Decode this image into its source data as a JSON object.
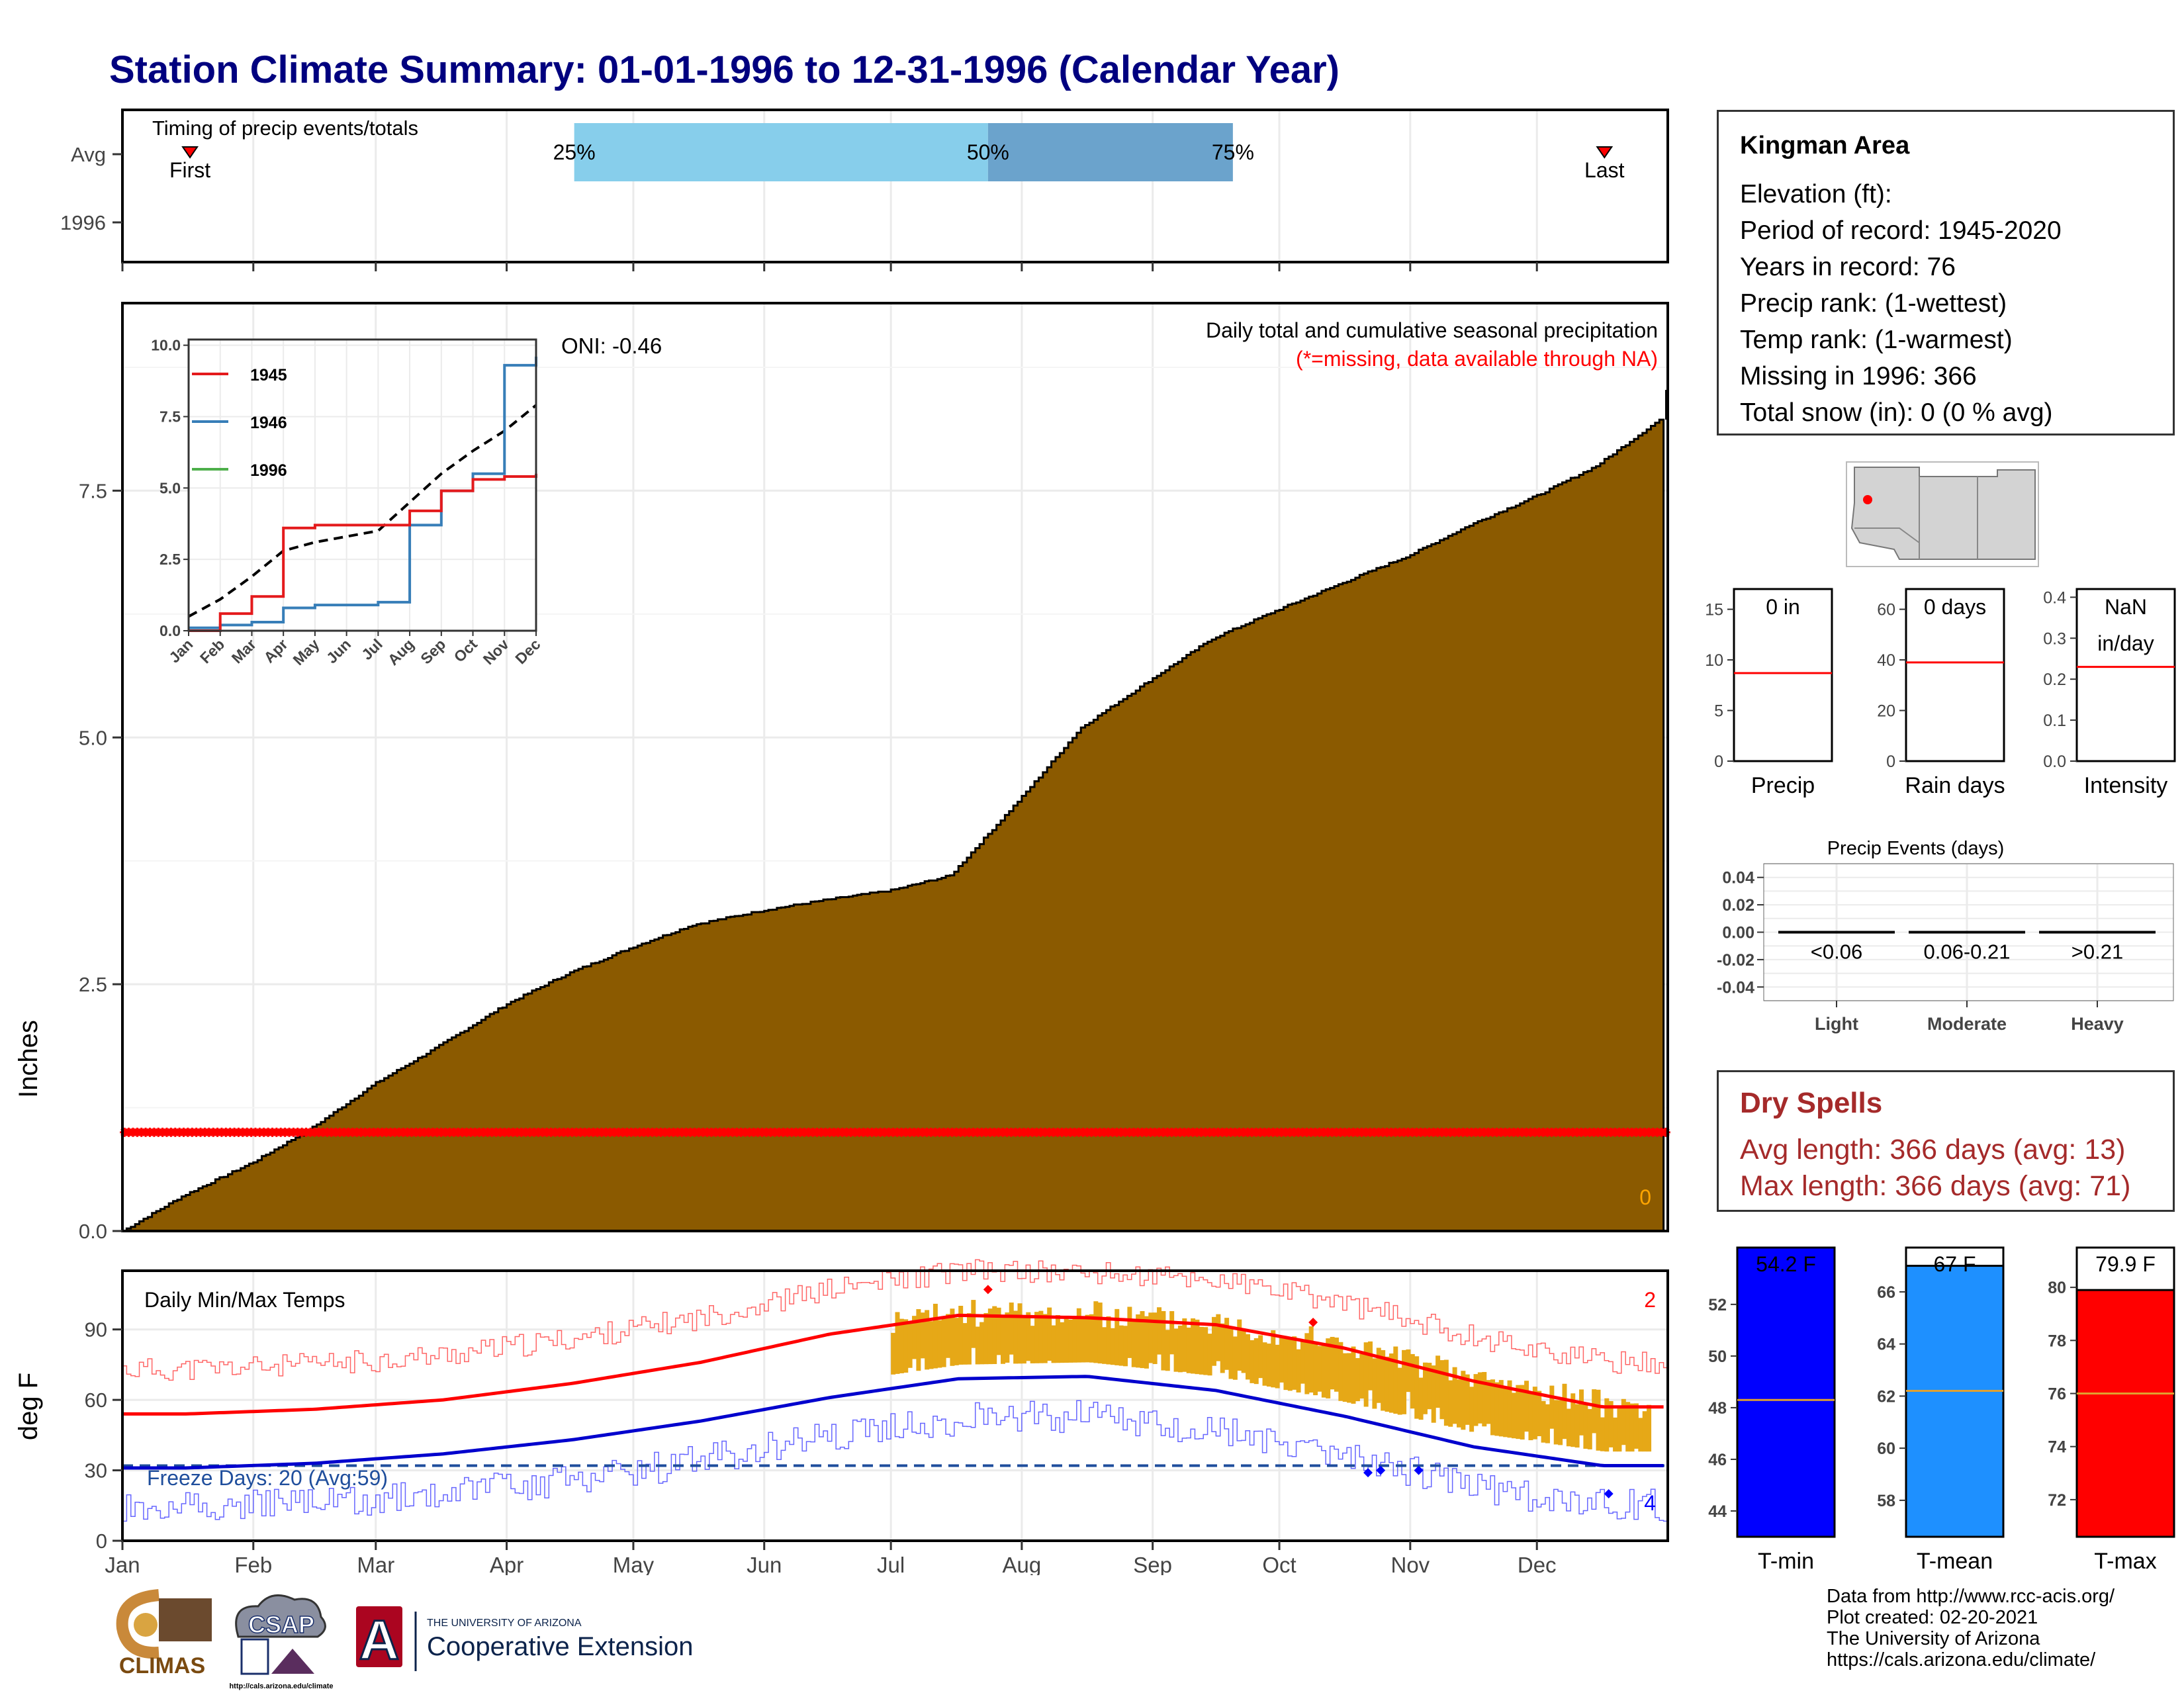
{
  "title": "Station Climate Summary: 01-01-1996 to 12-31-1996 (Calendar Year)",
  "months": [
    "Jan",
    "Feb",
    "Mar",
    "Apr",
    "May",
    "Jun",
    "Jul",
    "Aug",
    "Sep",
    "Oct",
    "Nov",
    "Dec"
  ],
  "timing_panel": {
    "label": "Timing of precip events/totals",
    "rows": [
      "Avg",
      "1996"
    ],
    "first_label": "First",
    "last_label": "Last",
    "first_day": 16,
    "last_day": 351,
    "q25_label": "25%",
    "q50_label": "50%",
    "q75_label": "75%",
    "q25_day": 107,
    "q50_day": 205,
    "q75_day": 263,
    "colors": {
      "band_low": "#87ceeb",
      "band_high": "#6ba3cc",
      "marker": "#ff0000"
    }
  },
  "precip_panel": {
    "ylabel": "Inches",
    "oni": "ONI: -0.46",
    "header": "Daily total and cumulative seasonal precipitation",
    "missing_note": "(*=missing, data available through NA)",
    "count_label": "0",
    "yticks": [
      "0.0",
      "2.5",
      "5.0",
      "7.5"
    ],
    "colors": {
      "fill": "#8b5a00",
      "missing": "#ff0000",
      "count": "#ffa500"
    }
  },
  "inset": {
    "legend": [
      "1945",
      "1946",
      "1996"
    ],
    "yticks": [
      "0.0",
      "2.5",
      "5.0",
      "7.5",
      "10.0"
    ],
    "colors": {
      "1945": "#e41a1c",
      "1946": "#377eb8",
      "1996": "#4daf4a",
      "avg": "#000000"
    }
  },
  "temp_panel": {
    "label": "Daily Min/Max Temps",
    "ylabel": "deg F",
    "freeze": "Freeze Days: 20 (Avg:59)",
    "count_hot": "2",
    "count_cold": "4",
    "yticks": [
      "0",
      "30",
      "60",
      "90"
    ],
    "colors": {
      "max_avg": "#ff0000",
      "min_avg": "#0000cd",
      "bars": "#e6a817",
      "freeze_line": "#1f4e9c"
    }
  },
  "station": {
    "name": "Kingman Area",
    "lines": [
      "Elevation (ft):",
      "Period of record: 1945-2020",
      "Years in record: 76",
      "Precip rank:  (1-wettest)",
      "Temp rank:  (1-warmest)",
      "Missing in 1996: 366",
      "Total snow (in): 0 (0 % avg)"
    ]
  },
  "small_panels": [
    {
      "value_label": "0 in",
      "title": "Precip",
      "yticks": [
        "0",
        "5",
        "10",
        "15"
      ],
      "ymax": 17,
      "avg": 8.7
    },
    {
      "value_label": "0 days",
      "title": "Rain days",
      "yticks": [
        "0",
        "20",
        "40",
        "60"
      ],
      "ymax": 68,
      "avg": 39
    },
    {
      "value_label": "NaN\nin/day",
      "title": "Intensity",
      "yticks": [
        "0.0",
        "0.1",
        "0.2",
        "0.3",
        "0.4"
      ],
      "ymax": 0.42,
      "avg": 0.23
    }
  ],
  "events": {
    "title": "Precip Events (days)",
    "categories": [
      "Light",
      "Moderate",
      "Heavy"
    ],
    "ranges": [
      "<0.06",
      "0.06-0.21",
      ">0.21"
    ],
    "yticks": [
      "0.04",
      "0.02",
      "0.00",
      "-0.02",
      "-0.04"
    ],
    "values": [
      0,
      0,
      0
    ]
  },
  "dry_spells": {
    "title": "Dry Spells",
    "avg_line": "Avg length: 366 days (avg: 13)",
    "max_line": "Max length: 366 days (avg: 71)"
  },
  "temp_bars": [
    {
      "title": "T-min",
      "label": "54.2 F",
      "value": 54.2,
      "avg": 48.3,
      "ylim": [
        43,
        54.2
      ],
      "yticks": [
        "44",
        "46",
        "48",
        "50",
        "52"
      ],
      "color": "#0000ff"
    },
    {
      "title": "T-mean",
      "label": "67 F",
      "value": 67,
      "avg": 62.2,
      "ylim": [
        56.6,
        67.7
      ],
      "yticks": [
        "58",
        "60",
        "62",
        "64",
        "66"
      ],
      "color": "#1e90ff"
    },
    {
      "title": "T-max",
      "label": "79.9 F",
      "value": 79.9,
      "avg": 76.0,
      "ylim": [
        70.6,
        81.5
      ],
      "yticks": [
        "72",
        "74",
        "76",
        "78",
        "80"
      ],
      "color": "#ff0000"
    }
  ],
  "credits": [
    "Data from http://www.rcc-acis.org/",
    "Plot created: 02-20-2021",
    "The University of Arizona",
    "https://cals.arizona.edu/climate/"
  ],
  "logos": {
    "climas": "CLIMAS",
    "csap": "CSAP",
    "csap_url": "http://cals.arizona.edu/climate",
    "ua_small": "THE UNIVERSITY OF ARIZONA",
    "ua_big": "Cooperative Extension",
    "ua_letter": "A"
  },
  "chart_data": [
    {
      "type": "area",
      "title": "Daily total and cumulative seasonal precipitation",
      "xlabel": "",
      "ylabel": "Inches",
      "x": [
        "Jan 1",
        "Jan 15",
        "Feb 1",
        "Feb 15",
        "Mar 1",
        "Mar 15",
        "Apr 1",
        "Apr 15",
        "May 1",
        "May 15",
        "Jun 1",
        "Jun 15",
        "Jul 1",
        "Jul 15",
        "Aug 1",
        "Aug 15",
        "Sep 1",
        "Sep 15",
        "Oct 1",
        "Oct 15",
        "Nov 1",
        "Nov 15",
        "Dec 1",
        "Dec 15",
        "Dec 31"
      ],
      "series": [
        {
          "values": [
            0.0,
            0.35,
            0.7,
            1.05,
            1.5,
            1.85,
            2.3,
            2.6,
            2.88,
            3.1,
            3.25,
            3.35,
            3.45,
            3.6,
            4.4,
            5.1,
            5.6,
            6.0,
            6.3,
            6.55,
            6.85,
            7.15,
            7.45,
            7.75,
            8.25
          ]
        }
      ],
      "ylim": [
        0,
        9.4
      ],
      "missing_markers_y": 1.0,
      "annotation": "ONI: -0.46"
    },
    {
      "type": "line",
      "title": "",
      "categories": [
        "Jan",
        "Feb",
        "Mar",
        "Apr",
        "May",
        "Jun",
        "Jul",
        "Aug",
        "Sep",
        "Oct",
        "Nov",
        "Dec"
      ],
      "series": [
        {
          "name": "1945",
          "values": [
            0.0,
            0.6,
            1.2,
            3.6,
            3.7,
            3.7,
            3.7,
            4.2,
            4.9,
            5.3,
            5.4,
            5.5
          ]
        },
        {
          "name": "1946",
          "values": [
            0.1,
            0.2,
            0.3,
            0.8,
            0.9,
            0.9,
            1.0,
            3.7,
            4.9,
            5.5,
            9.3,
            9.6
          ]
        },
        {
          "name": "avg",
          "values": [
            0.5,
            1.1,
            1.9,
            2.8,
            3.1,
            3.3,
            3.5,
            4.5,
            5.5,
            6.3,
            7.0,
            7.9
          ]
        }
      ],
      "ylim": [
        0,
        10.2
      ]
    },
    {
      "type": "line",
      "title": "Daily Min/Max Temps",
      "ylabel": "deg F",
      "categories": [
        "Jan",
        "Feb",
        "Mar",
        "Apr",
        "May",
        "Jun",
        "Jul",
        "Aug",
        "Sep",
        "Oct",
        "Nov",
        "Dec"
      ],
      "series": [
        {
          "values": [
            54,
            56,
            60,
            67,
            76,
            88,
            96,
            95,
            92,
            82,
            68,
            57
          ]
        },
        {
          "values": [
            31,
            33,
            37,
            43,
            51,
            61,
            69,
            70,
            64,
            53,
            40,
            32
          ]
        }
      ],
      "ylim": [
        0,
        115
      ],
      "annotation": "Freeze Days: 20 (Avg:59)"
    }
  ]
}
